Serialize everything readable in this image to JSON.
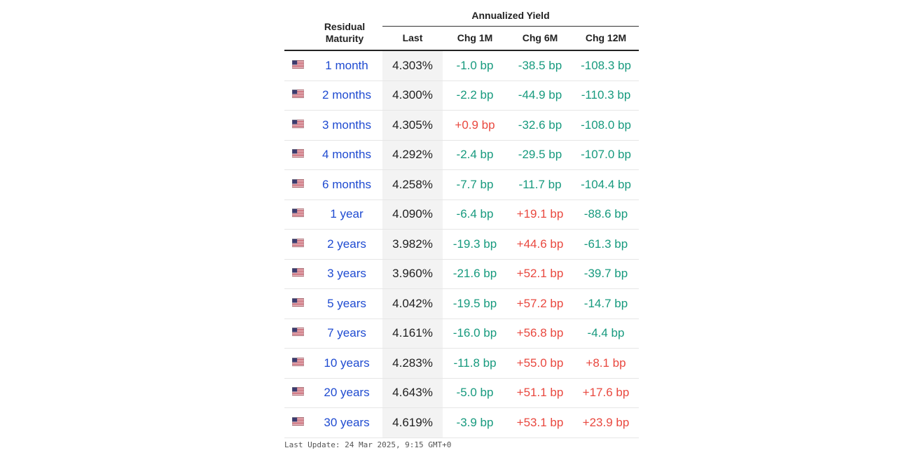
{
  "header": {
    "maturity_label_line1": "Residual",
    "maturity_label_line2": "Maturity",
    "group_label": "Annualized Yield",
    "columns": {
      "last": "Last",
      "chg_1m": "Chg 1M",
      "chg_6m": "Chg 6M",
      "chg_12m": "Chg 12M"
    }
  },
  "flag_icon": "us-flag-icon",
  "colors": {
    "link": "#1f4bd1",
    "negative": "#179a7e",
    "positive": "#e9483f",
    "last_column_bg": "#f3f3f3"
  },
  "rows": [
    {
      "maturity": "1 month",
      "last": "4.303%",
      "chg_1m": "-1.0 bp",
      "chg_6m": "-38.5 bp",
      "chg_12m": "-108.3 bp"
    },
    {
      "maturity": "2 months",
      "last": "4.300%",
      "chg_1m": "-2.2 bp",
      "chg_6m": "-44.9 bp",
      "chg_12m": "-110.3 bp"
    },
    {
      "maturity": "3 months",
      "last": "4.305%",
      "chg_1m": "+0.9 bp",
      "chg_6m": "-32.6 bp",
      "chg_12m": "-108.0 bp"
    },
    {
      "maturity": "4 months",
      "last": "4.292%",
      "chg_1m": "-2.4 bp",
      "chg_6m": "-29.5 bp",
      "chg_12m": "-107.0 bp"
    },
    {
      "maturity": "6 months",
      "last": "4.258%",
      "chg_1m": "-7.7 bp",
      "chg_6m": "-11.7 bp",
      "chg_12m": "-104.4 bp"
    },
    {
      "maturity": "1 year",
      "last": "4.090%",
      "chg_1m": "-6.4 bp",
      "chg_6m": "+19.1 bp",
      "chg_12m": "-88.6 bp"
    },
    {
      "maturity": "2 years",
      "last": "3.982%",
      "chg_1m": "-19.3 bp",
      "chg_6m": "+44.6 bp",
      "chg_12m": "-61.3 bp"
    },
    {
      "maturity": "3 years",
      "last": "3.960%",
      "chg_1m": "-21.6 bp",
      "chg_6m": "+52.1 bp",
      "chg_12m": "-39.7 bp"
    },
    {
      "maturity": "5 years",
      "last": "4.042%",
      "chg_1m": "-19.5 bp",
      "chg_6m": "+57.2 bp",
      "chg_12m": "-14.7 bp"
    },
    {
      "maturity": "7 years",
      "last": "4.161%",
      "chg_1m": "-16.0 bp",
      "chg_6m": "+56.8 bp",
      "chg_12m": "-4.4 bp"
    },
    {
      "maturity": "10 years",
      "last": "4.283%",
      "chg_1m": "-11.8 bp",
      "chg_6m": "+55.0 bp",
      "chg_12m": "+8.1 bp"
    },
    {
      "maturity": "20 years",
      "last": "4.643%",
      "chg_1m": "-5.0 bp",
      "chg_6m": "+51.1 bp",
      "chg_12m": "+17.6 bp"
    },
    {
      "maturity": "30 years",
      "last": "4.619%",
      "chg_1m": "-3.9 bp",
      "chg_6m": "+53.1 bp",
      "chg_12m": "+23.9 bp"
    }
  ],
  "footer": {
    "last_update": "Last Update: 24 Mar 2025, 9:15 GMT+0"
  }
}
